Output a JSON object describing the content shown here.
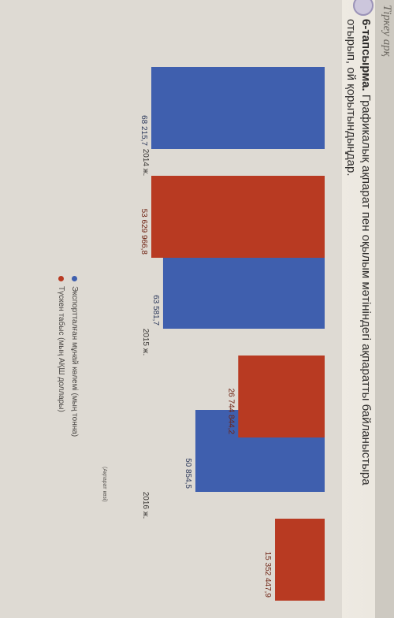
{
  "header": {
    "running_text": "Тіркеу арқ"
  },
  "task": {
    "number_label": "6-тапсырма.",
    "text_line1": "Графикалық ақпарат пен оқылым мәтініндегі ақпаратты байланыстыра",
    "text_line2": "отырып, ой қорытындыңдар."
  },
  "colors": {
    "export": "#3f5fae",
    "revenue": "#b83a22",
    "label_export": "#2e3a5c",
    "label_revenue": "#6e2212"
  },
  "chart_data": {
    "type": "bar",
    "categories": [
      "2014 ж.",
      "2015 ж.",
      "2016 ж."
    ],
    "series": [
      {
        "name": "Экспортталған мұнай көлемі (мың тонна)",
        "values": [
          68215.7,
          63581.7,
          50854.5
        ],
        "labels": [
          "68 215,7",
          "63 581,7",
          "50 854,5"
        ]
      },
      {
        "name": "Түскен табыс (мың АҚШ доллары)",
        "values": [
          53629966.8,
          26744844.2,
          15352447.9
        ],
        "labels": [
          "53 629 966,8",
          "26 744 844,2",
          "15 352 447,9"
        ]
      }
    ],
    "source_note": "(Ақпарат көзі)",
    "legend_position": "bottom"
  }
}
